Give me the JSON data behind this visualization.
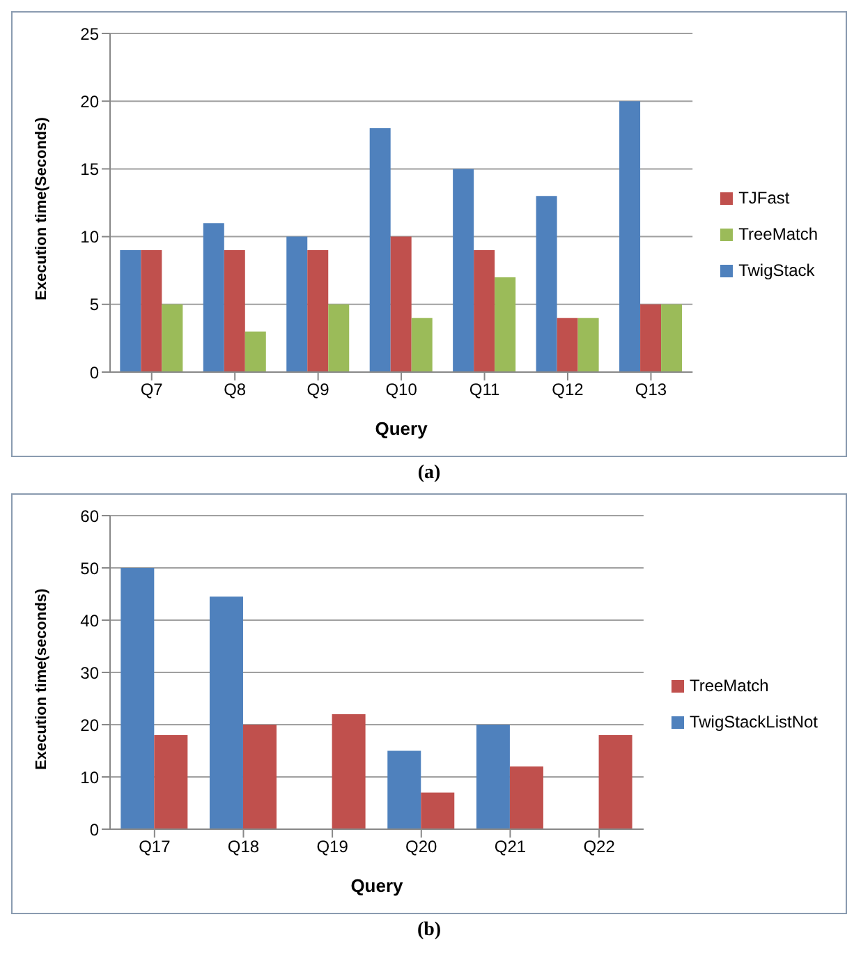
{
  "chart_data": [
    {
      "type": "bar",
      "xlabel": "Query",
      "ylabel": "Execution time(Seconds)",
      "categories": [
        "Q7",
        "Q8",
        "Q9",
        "Q10",
        "Q11",
        "Q12",
        "Q13"
      ],
      "series": [
        {
          "name": "TwigStack",
          "color": "#4f81bd",
          "values": [
            9,
            11,
            10,
            18,
            15,
            13,
            20
          ]
        },
        {
          "name": "TJFast",
          "color": "#c0504d",
          "values": [
            9,
            9,
            9,
            10,
            9,
            4,
            5
          ]
        },
        {
          "name": "TreeMatch",
          "color": "#9bbb59",
          "values": [
            5,
            3,
            5,
            4,
            7,
            4,
            5
          ]
        }
      ],
      "ylim": [
        0,
        25
      ],
      "yticks": [
        0,
        5,
        10,
        15,
        20,
        25
      ],
      "grid": "y",
      "legend": "right",
      "annotations": [
        "(a)"
      ]
    },
    {
      "type": "bar",
      "xlabel": "Query",
      "ylabel": "Execution time(seconds)",
      "categories": [
        "Q17",
        "Q18",
        "Q19",
        "Q20",
        "Q21",
        "Q22"
      ],
      "series": [
        {
          "name": "TwigStackListNot",
          "color": "#4f81bd",
          "values": [
            50,
            44.5,
            null,
            15,
            20,
            null
          ]
        },
        {
          "name": "TreeMatch",
          "color": "#c0504d",
          "values": [
            18,
            20,
            22,
            7,
            12,
            18
          ]
        }
      ],
      "ylim": [
        0,
        60
      ],
      "yticks": [
        0,
        10,
        20,
        30,
        40,
        50,
        60
      ],
      "grid": "y",
      "legend": "right",
      "annotations": [
        "(b)"
      ]
    }
  ]
}
